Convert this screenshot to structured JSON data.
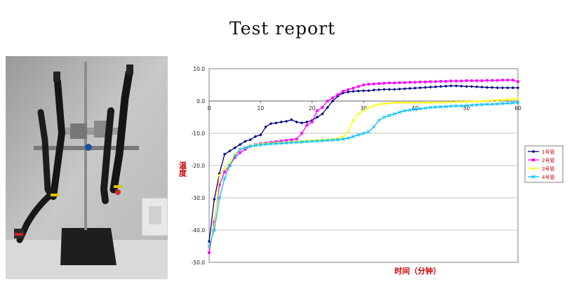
{
  "page": {
    "title": "Test report"
  },
  "photo": {
    "description_icon": "apparatus-photo"
  },
  "chart_data": {
    "type": "line",
    "title": "",
    "xlabel": "时间（分钟）",
    "ylabel": "温度",
    "xlim": [
      0,
      60
    ],
    "ylim": [
      -50,
      10
    ],
    "x_ticks": [
      "0",
      "10",
      "20",
      "30",
      "40",
      "50",
      "60"
    ],
    "y_ticks": [
      "10.0",
      "0.0",
      "-10.0",
      "-20.0",
      "-30.0",
      "-40.0",
      "-50.0"
    ],
    "grid": true,
    "legend_position": "right",
    "x": [
      0,
      1,
      2,
      3,
      4,
      5,
      6,
      7,
      8,
      9,
      10,
      11,
      12,
      13,
      14,
      15,
      16,
      17,
      18,
      19,
      20,
      21,
      22,
      23,
      24,
      25,
      26,
      27,
      28,
      29,
      30,
      31,
      32,
      33,
      34,
      35,
      36,
      37,
      38,
      39,
      40,
      41,
      42,
      43,
      44,
      45,
      46,
      47,
      48,
      49,
      50,
      51,
      52,
      53,
      54,
      55,
      56,
      57,
      58,
      59,
      60
    ],
    "series": [
      {
        "name": "1号管",
        "color": "#000080",
        "marker": "diamond",
        "values": [
          -43.5,
          -30.5,
          -22.5,
          -16.5,
          -15.5,
          -14.5,
          -13.5,
          -12.5,
          -12,
          -11,
          -10.5,
          -8,
          -7,
          -6.8,
          -6.5,
          -6.3,
          -5.8,
          -6.5,
          -6.8,
          -6.5,
          -6,
          -5,
          -4,
          -2,
          0,
          1.5,
          2.5,
          2.8,
          3,
          3.1,
          3.2,
          3.2,
          3.4,
          3.5,
          3.6,
          3.6,
          3.6,
          3.7,
          3.8,
          3.9,
          4,
          4.1,
          4.2,
          4.3,
          4.4,
          4.5,
          4.6,
          4.7,
          4.7,
          4.6,
          4.5,
          4.5,
          4.4,
          4.3,
          4.2,
          4.2,
          4.1,
          4.1,
          4.1,
          4.1,
          4.1
        ]
      },
      {
        "name": "2号管",
        "color": "#ff00ff",
        "marker": "square",
        "values": [
          -47,
          -37.5,
          -26,
          -22,
          -20,
          -17.5,
          -16,
          -15,
          -14,
          -13.5,
          -13.2,
          -13,
          -12.8,
          -12.6,
          -12.4,
          -12.2,
          -12,
          -11.8,
          -10,
          -7.5,
          -6.5,
          -3,
          -2,
          0,
          1,
          2,
          3,
          3.5,
          4,
          4.5,
          5,
          5.2,
          5.3,
          5.4,
          5.5,
          5.6,
          5.6,
          5.7,
          5.7,
          5.8,
          5.8,
          5.9,
          5.9,
          6,
          6,
          6.1,
          6.1,
          6.2,
          6.2,
          6.2,
          6.3,
          6.3,
          6.3,
          6.3,
          6.4,
          6.4,
          6.4,
          6.5,
          6.5,
          6.5,
          6
        ]
      },
      {
        "name": "3号管",
        "color": "#ffff00",
        "marker": "triangle",
        "values": [
          -45,
          -39,
          -23,
          -21,
          -19,
          -16.5,
          -15,
          -14.5,
          -14,
          -13.5,
          -13.3,
          -13.1,
          -13,
          -12.9,
          -12.8,
          -12.7,
          -12.6,
          -12.5,
          -12.4,
          -12.3,
          -12.2,
          -12.1,
          -12,
          -12,
          -11.8,
          -11.5,
          -11,
          -9.5,
          -6,
          -4,
          -3,
          -2,
          -1.5,
          -1,
          -0.8,
          -0.6,
          -0.5,
          -0.5,
          -0.5,
          -0.5,
          -0.5,
          -0.5,
          -0.5,
          -0.5,
          -0.4,
          -0.4,
          -0.3,
          -0.3,
          -0.2,
          -0.2,
          -0.1,
          -0.1,
          0,
          0,
          0.1,
          0.2,
          0.3,
          0.4,
          0.5,
          0.6,
          0.8
        ]
      },
      {
        "name": "4号管",
        "color": "#00bfff",
        "marker": "x",
        "values": [
          -45,
          -40,
          -30,
          -24,
          -20,
          -17,
          -15,
          -14.5,
          -14,
          -13.8,
          -13.6,
          -13.4,
          -13.3,
          -13.2,
          -13.1,
          -13,
          -12.9,
          -12.8,
          -12.7,
          -12.6,
          -12.5,
          -12.4,
          -12.3,
          -12.2,
          -12.1,
          -12,
          -11.8,
          -11.5,
          -11,
          -10.5,
          -10,
          -9.5,
          -8,
          -6,
          -5,
          -4.5,
          -4,
          -3.5,
          -3,
          -2.8,
          -2.6,
          -2.4,
          -2.2,
          -2,
          -1.9,
          -1.8,
          -1.7,
          -1.6,
          -1.5,
          -1.5,
          -1.4,
          -1.3,
          -1.2,
          -1.1,
          -1,
          -1,
          -0.9,
          -0.8,
          -0.7,
          -0.6,
          -0.5
        ]
      }
    ]
  }
}
